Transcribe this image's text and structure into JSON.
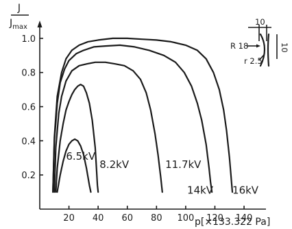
{
  "chart_data": {
    "type": "line",
    "title": "",
    "ylabel_num": "J",
    "ylabel_den": "J",
    "ylabel_den_sub": "max",
    "xlabel": "p[×133.322 Pa]",
    "xticks": [
      20,
      40,
      60,
      80,
      100,
      120,
      140
    ],
    "yticks": [
      0.2,
      0.4,
      0.6,
      0.8,
      1.0
    ],
    "ytick_labels": [
      "0.2",
      "0.4",
      "0.6",
      "0.8",
      "1.0"
    ],
    "xlim": [
      0,
      155
    ],
    "ylim": [
      0,
      1.08
    ],
    "grid": false,
    "series": [
      {
        "name": "6.5kV",
        "x": [
          12,
          14,
          16,
          18,
          20,
          22,
          24,
          26,
          28,
          30,
          32,
          34,
          35
        ],
        "y": [
          0.1,
          0.2,
          0.28,
          0.34,
          0.38,
          0.4,
          0.41,
          0.4,
          0.37,
          0.32,
          0.24,
          0.14,
          0.1
        ]
      },
      {
        "name": "8.2kV",
        "x": [
          11,
          12,
          14,
          16,
          18,
          20,
          22,
          24,
          26,
          28,
          30,
          32,
          34,
          36,
          38,
          39,
          39.5,
          40
        ],
        "y": [
          0.1,
          0.24,
          0.4,
          0.5,
          0.58,
          0.63,
          0.67,
          0.7,
          0.72,
          0.73,
          0.72,
          0.68,
          0.62,
          0.52,
          0.36,
          0.22,
          0.14,
          0.1
        ]
      },
      {
        "name": "11.7kV",
        "x": [
          10,
          11,
          13,
          15,
          18,
          22,
          27,
          32,
          38,
          45,
          52,
          58,
          64,
          69,
          73,
          76,
          79,
          81,
          83,
          84
        ],
        "y": [
          0.1,
          0.36,
          0.56,
          0.66,
          0.75,
          0.81,
          0.84,
          0.85,
          0.86,
          0.86,
          0.85,
          0.84,
          0.81,
          0.76,
          0.68,
          0.58,
          0.44,
          0.32,
          0.18,
          0.1
        ]
      },
      {
        "name": "14kV",
        "x": [
          9,
          10,
          12,
          14,
          17,
          20,
          25,
          30,
          37,
          45,
          55,
          65,
          75,
          85,
          93,
          99,
          104,
          108,
          111,
          114,
          116,
          117,
          118
        ],
        "y": [
          0.1,
          0.4,
          0.62,
          0.74,
          0.82,
          0.87,
          0.91,
          0.93,
          0.95,
          0.955,
          0.96,
          0.95,
          0.93,
          0.9,
          0.86,
          0.8,
          0.72,
          0.62,
          0.52,
          0.38,
          0.24,
          0.16,
          0.1
        ]
      },
      {
        "name": "16kV",
        "x": [
          9,
          10,
          12,
          15,
          18,
          22,
          27,
          33,
          40,
          50,
          60,
          70,
          80,
          90,
          100,
          108,
          114,
          119,
          123,
          126,
          128,
          130,
          131,
          132
        ],
        "y": [
          0.1,
          0.42,
          0.66,
          0.8,
          0.88,
          0.93,
          0.96,
          0.98,
          0.99,
          1.0,
          1.0,
          0.995,
          0.99,
          0.98,
          0.96,
          0.93,
          0.88,
          0.8,
          0.7,
          0.58,
          0.46,
          0.3,
          0.2,
          0.1
        ]
      }
    ],
    "inset": {
      "labels": [
        "10",
        "R 18",
        "10",
        "r 2.5"
      ]
    }
  }
}
